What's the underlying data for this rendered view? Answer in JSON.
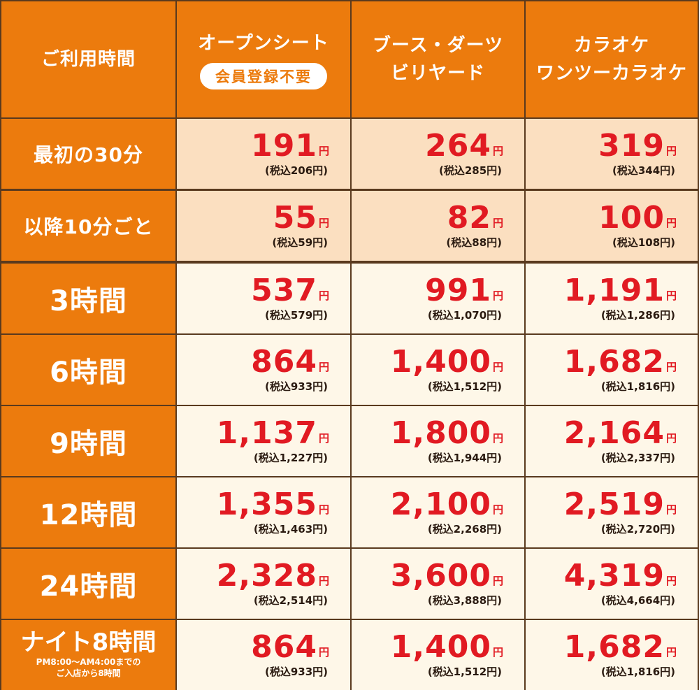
{
  "header": {
    "label_col": "ご利用時間",
    "open_seat": {
      "title": "オープンシート",
      "badge": "会員登録不要"
    },
    "booth": {
      "line1": "ブース・ダーツ",
      "line2": "ビリヤード"
    },
    "karaoke": {
      "line1": "カラオケ",
      "line2": "ワンツーカラオケ"
    }
  },
  "unit": "円",
  "rows": [
    {
      "label": "最初の30分",
      "open": {
        "price": "191",
        "tax": "(税込206円)"
      },
      "booth": {
        "price": "264",
        "tax": "(税込285円)"
      },
      "karaoke": {
        "price": "319",
        "tax": "(税込344円)"
      }
    },
    {
      "label": "以降10分ごと",
      "open": {
        "price": "55",
        "tax": "(税込59円)"
      },
      "booth": {
        "price": "82",
        "tax": "(税込88円)"
      },
      "karaoke": {
        "price": "100",
        "tax": "(税込108円)"
      }
    },
    {
      "label": "3時間",
      "open": {
        "price": "537",
        "tax": "(税込579円)"
      },
      "booth": {
        "price": "991",
        "tax": "(税込1,070円)"
      },
      "karaoke": {
        "price": "1,191",
        "tax": "(税込1,286円)"
      }
    },
    {
      "label": "6時間",
      "open": {
        "price": "864",
        "tax": "(税込933円)"
      },
      "booth": {
        "price": "1,400",
        "tax": "(税込1,512円)"
      },
      "karaoke": {
        "price": "1,682",
        "tax": "(税込1,816円)"
      }
    },
    {
      "label": "9時間",
      "open": {
        "price": "1,137",
        "tax": "(税込1,227円)"
      },
      "booth": {
        "price": "1,800",
        "tax": "(税込1,944円)"
      },
      "karaoke": {
        "price": "2,164",
        "tax": "(税込2,337円)"
      }
    },
    {
      "label": "12時間",
      "open": {
        "price": "1,355",
        "tax": "(税込1,463円)"
      },
      "booth": {
        "price": "2,100",
        "tax": "(税込2,268円)"
      },
      "karaoke": {
        "price": "2,519",
        "tax": "(税込2,720円)"
      }
    },
    {
      "label": "24時間",
      "open": {
        "price": "2,328",
        "tax": "(税込2,514円)"
      },
      "booth": {
        "price": "3,600",
        "tax": "(税込3,888円)"
      },
      "karaoke": {
        "price": "4,319",
        "tax": "(税込4,664円)"
      }
    },
    {
      "label": "ナイト8時間",
      "note1": "PM8:00～AM4:00までの",
      "note2": "ご入店から8時間",
      "open": {
        "price": "864",
        "tax": "(税込933円)"
      },
      "booth": {
        "price": "1,400",
        "tax": "(税込1,512円)"
      },
      "karaoke": {
        "price": "1,682",
        "tax": "(税込1,816円)"
      }
    }
  ],
  "colors": {
    "header_bg": "#ec7b0d",
    "price_red": "#e11a22",
    "tint_bg": "#fbdfc0",
    "light_bg": "#fef7e8",
    "border": "#5a3a1e"
  }
}
